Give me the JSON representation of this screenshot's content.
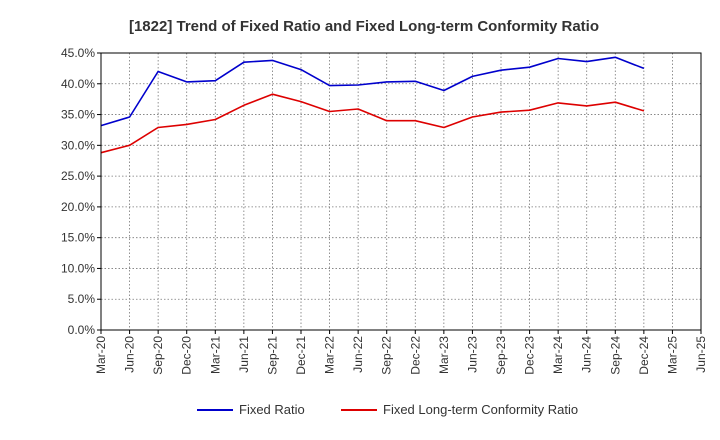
{
  "chart_data": {
    "type": "line",
    "title": "[1822]  Trend of Fixed Ratio and Fixed Long-term Conformity Ratio",
    "xlabel": "",
    "ylabel": "",
    "ylim": [
      0,
      45
    ],
    "y_ticks": [
      "0.0%",
      "5.0%",
      "10.0%",
      "15.0%",
      "20.0%",
      "25.0%",
      "30.0%",
      "35.0%",
      "40.0%",
      "45.0%"
    ],
    "categories": [
      "Mar-20",
      "Jun-20",
      "Sep-20",
      "Dec-20",
      "Mar-21",
      "Jun-21",
      "Sep-21",
      "Dec-21",
      "Mar-22",
      "Jun-22",
      "Sep-22",
      "Dec-22",
      "Mar-23",
      "Jun-23",
      "Sep-23",
      "Dec-23",
      "Mar-24",
      "Jun-24",
      "Sep-24",
      "Dec-24",
      "Mar-25",
      "Jun-25"
    ],
    "grid": true,
    "legend_position": "bottom",
    "series": [
      {
        "name": "Fixed Ratio",
        "color": "#0000cc",
        "values": [
          33.2,
          34.6,
          42.0,
          40.3,
          40.5,
          43.5,
          43.8,
          42.3,
          39.7,
          39.8,
          40.3,
          40.4,
          38.9,
          41.2,
          42.2,
          42.7,
          44.1,
          43.6,
          44.3,
          42.5,
          null,
          null
        ]
      },
      {
        "name": "Fixed Long-term Conformity Ratio",
        "color": "#dd0000",
        "values": [
          28.8,
          30.0,
          32.9,
          33.4,
          34.2,
          36.5,
          38.3,
          37.1,
          35.5,
          35.9,
          34.0,
          34.0,
          32.9,
          34.6,
          35.4,
          35.7,
          36.9,
          36.4,
          37.0,
          35.6,
          null,
          null
        ]
      }
    ]
  }
}
